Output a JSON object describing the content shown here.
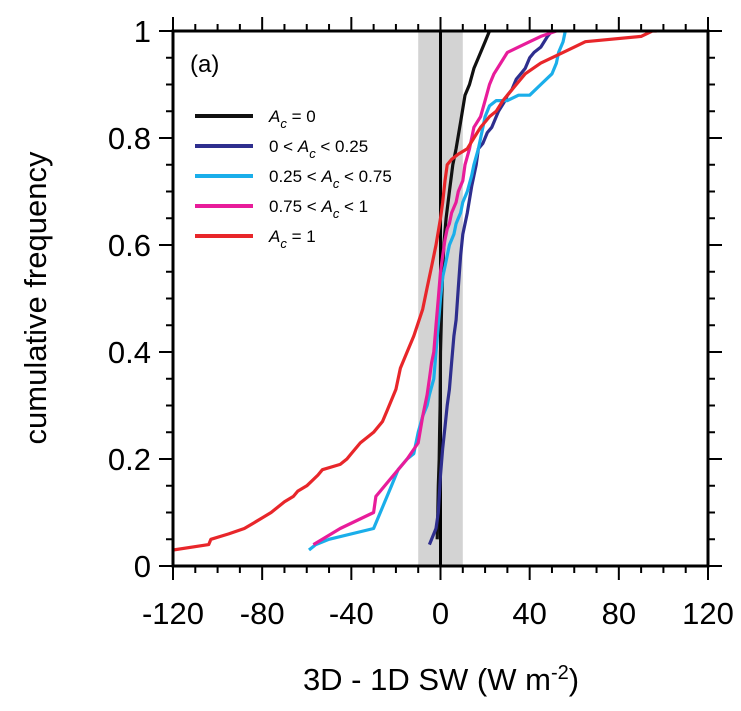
{
  "chart_data": {
    "type": "line",
    "panel_label": "(a)",
    "xlabel": {
      "main": "3D - 1D SW (W m",
      "sup": "-2",
      "tail": ")"
    },
    "ylabel": "cumulative frequency",
    "xlim": [
      -120,
      120
    ],
    "ylim": [
      0,
      1
    ],
    "xticks": [
      -120,
      -80,
      -40,
      0,
      40,
      80,
      120
    ],
    "xtick_labels": [
      "-120",
      "-80",
      "-40",
      "0",
      "40",
      "80",
      "120"
    ],
    "yticks": [
      0,
      0.2,
      0.4,
      0.6,
      0.8,
      1
    ],
    "ytick_labels": [
      "0",
      "0.2",
      "0.4",
      "0.6",
      "0.8",
      "1"
    ],
    "shaded_band": {
      "x": [
        -10,
        10
      ],
      "color": "#d3d3d3"
    },
    "zero_line": {
      "x": 0,
      "color": "#000000"
    },
    "legend_position": "upper-left",
    "series": [
      {
        "name": "Ac = 0",
        "legend": {
          "pre": "",
          "var": "A",
          "sub": "c",
          "post": " = 0"
        },
        "color": "#111111",
        "x": [
          -1.5,
          -1.2,
          -1.0,
          -0.6,
          -0.4,
          -0.2,
          0.0,
          0.3,
          0.6,
          1.0,
          1.5,
          2.5,
          4.0,
          5.5,
          7.0,
          9.0,
          11.0,
          13.0,
          15.0,
          17.0,
          20.0,
          22.0
        ],
        "y": [
          0.05,
          0.1,
          0.15,
          0.2,
          0.25,
          0.3,
          0.4,
          0.45,
          0.5,
          0.55,
          0.6,
          0.65,
          0.7,
          0.75,
          0.78,
          0.83,
          0.88,
          0.9,
          0.93,
          0.95,
          0.98,
          1.0
        ]
      },
      {
        "name": "0 < Ac < 0.25",
        "legend": {
          "pre": "0 < ",
          "var": "A",
          "sub": "c",
          "post": " < 0.25"
        },
        "color": "#2e2e8e",
        "x": [
          -5,
          -2,
          -1,
          0,
          1,
          2,
          3,
          4,
          5,
          6,
          7,
          8,
          9,
          10,
          12,
          14,
          16,
          17,
          19,
          21,
          23,
          26,
          29,
          30,
          32,
          34,
          36,
          38,
          40,
          42,
          45,
          48,
          50
        ],
        "y": [
          0.04,
          0.07,
          0.1,
          0.17,
          0.22,
          0.26,
          0.3,
          0.33,
          0.38,
          0.43,
          0.46,
          0.52,
          0.58,
          0.62,
          0.66,
          0.71,
          0.75,
          0.78,
          0.79,
          0.81,
          0.82,
          0.85,
          0.87,
          0.88,
          0.89,
          0.91,
          0.92,
          0.93,
          0.95,
          0.96,
          0.97,
          0.99,
          1.0
        ]
      },
      {
        "name": "0.25 < Ac < 0.75",
        "legend": {
          "pre": "0.25 < ",
          "var": "A",
          "sub": "c",
          "post": " < 0.75"
        },
        "color": "#1aaeea",
        "x": [
          -59,
          -56,
          -50,
          -30,
          -27,
          -25,
          -22,
          -19,
          -15,
          -12,
          -10,
          -8,
          -6,
          -5,
          -3,
          -2,
          -1,
          0,
          1,
          2,
          3,
          4,
          5,
          6,
          7,
          8,
          9,
          10,
          12,
          14,
          15,
          17,
          19,
          20,
          22,
          25,
          30,
          35,
          40,
          45,
          50,
          52,
          53,
          55,
          56
        ],
        "y": [
          0.03,
          0.04,
          0.05,
          0.07,
          0.1,
          0.12,
          0.15,
          0.18,
          0.2,
          0.21,
          0.25,
          0.28,
          0.3,
          0.32,
          0.35,
          0.4,
          0.45,
          0.5,
          0.54,
          0.56,
          0.58,
          0.6,
          0.61,
          0.62,
          0.64,
          0.65,
          0.66,
          0.68,
          0.7,
          0.73,
          0.75,
          0.78,
          0.82,
          0.84,
          0.86,
          0.87,
          0.87,
          0.88,
          0.88,
          0.9,
          0.92,
          0.94,
          0.96,
          0.98,
          1.0
        ]
      },
      {
        "name": "0.75 < Ac < 1",
        "legend": {
          "pre": "0.75 < ",
          "var": "A",
          "sub": "c",
          "post": " < 1"
        },
        "color": "#e81c9a",
        "x": [
          -57,
          -45,
          -30,
          -29,
          -27,
          -23,
          -15,
          -10,
          -8,
          -6,
          -5,
          -4,
          -3,
          -2,
          -1,
          0,
          1,
          2,
          3,
          4,
          5,
          7,
          8,
          10,
          11,
          13,
          15,
          18,
          20,
          22,
          24,
          27,
          30,
          35,
          40,
          45,
          52
        ],
        "y": [
          0.04,
          0.07,
          0.1,
          0.13,
          0.14,
          0.16,
          0.2,
          0.23,
          0.28,
          0.32,
          0.35,
          0.38,
          0.4,
          0.45,
          0.5,
          0.55,
          0.58,
          0.61,
          0.63,
          0.64,
          0.66,
          0.68,
          0.7,
          0.72,
          0.75,
          0.78,
          0.82,
          0.84,
          0.87,
          0.9,
          0.92,
          0.94,
          0.96,
          0.97,
          0.98,
          0.99,
          1.0
        ]
      },
      {
        "name": "Ac = 1",
        "legend": {
          "pre": "",
          "var": "A",
          "sub": "c",
          "post": " = 1"
        },
        "color": "#e8262a",
        "x": [
          -120,
          -104,
          -103,
          -95,
          -88,
          -84,
          -80,
          -76,
          -73,
          -70,
          -66,
          -64,
          -60,
          -55,
          -53,
          -45,
          -42,
          -40,
          -36,
          -33,
          -30,
          -26,
          -24,
          -20,
          -18,
          -15,
          -12,
          -8,
          -6,
          -4,
          -2,
          0,
          1,
          2,
          3,
          5,
          8,
          12,
          15,
          18,
          20,
          22,
          25,
          28,
          30,
          34,
          38,
          45,
          55,
          60,
          65,
          90,
          95,
          97
        ],
        "y": [
          0.03,
          0.04,
          0.05,
          0.06,
          0.07,
          0.08,
          0.09,
          0.1,
          0.11,
          0.12,
          0.13,
          0.14,
          0.15,
          0.17,
          0.18,
          0.19,
          0.2,
          0.21,
          0.23,
          0.24,
          0.25,
          0.27,
          0.29,
          0.33,
          0.37,
          0.4,
          0.43,
          0.48,
          0.52,
          0.56,
          0.6,
          0.65,
          0.68,
          0.72,
          0.75,
          0.76,
          0.77,
          0.78,
          0.8,
          0.82,
          0.83,
          0.84,
          0.85,
          0.87,
          0.88,
          0.9,
          0.92,
          0.94,
          0.96,
          0.97,
          0.98,
          0.99,
          1.0,
          1.0
        ]
      }
    ]
  }
}
